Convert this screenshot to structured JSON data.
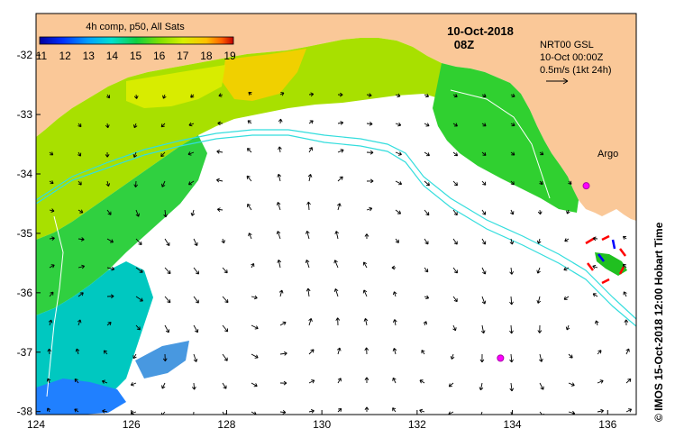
{
  "colorbar": {
    "title": "4h comp, p50, All Sats",
    "ticks": [
      "11",
      "12",
      "13",
      "14",
      "15",
      "16",
      "17",
      "18",
      "19"
    ]
  },
  "header": {
    "date": "10-Oct-2018",
    "time": "08Z"
  },
  "info_box": {
    "line1": "NRT00 GSL",
    "line2": "10-Oct 00:00Z",
    "line3": "0.5m/s (1kt 24h)"
  },
  "argo_label": "Argo",
  "credit": "© IMOS 15-Oct-2018 12:00 Hobart Time",
  "axes": {
    "x_ticks": [
      "124",
      "126",
      "128",
      "130",
      "132",
      "134",
      "136"
    ],
    "y_ticks": [
      "-32",
      "-33",
      "-34",
      "-35",
      "-36",
      "-37",
      "-38"
    ],
    "xlim": [
      124,
      136.6
    ],
    "ylim": [
      -38.05,
      -31.3
    ]
  },
  "floats": [
    {
      "name": "argo-float-1",
      "lon": 135.55,
      "lat": -34.2
    },
    {
      "name": "argo-float-2",
      "lon": 133.75,
      "lat": -37.1
    }
  ],
  "colors": {
    "land": "#fac898",
    "ocean_nodata": "#ffffff",
    "contour_cyan": "#33dddd",
    "argo": "#ff00ff",
    "colormap": [
      "#0000a0",
      "#0030ff",
      "#00a0ff",
      "#00e0d0",
      "#10d040",
      "#80e000",
      "#d8f000",
      "#ffc000",
      "#ff6000",
      "#c00000"
    ]
  }
}
